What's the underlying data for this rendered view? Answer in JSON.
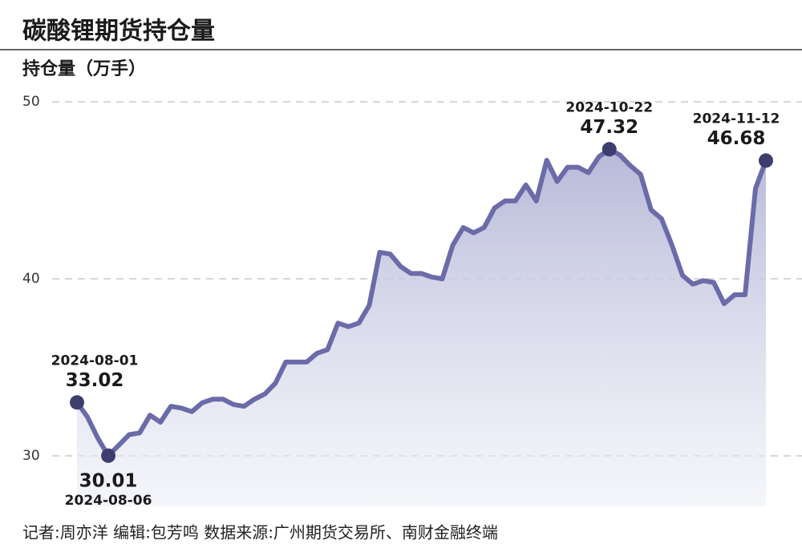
{
  "chart_data": {
    "type": "area-line",
    "title": "碳酸锂期货持仓量",
    "y_label": "持仓量（万手）",
    "footer": "记者:周亦洋  编辑:包芳鸣  数据来源:广州期货交易所、南财金融终端",
    "categories": [
      "2024-08-01",
      null,
      null,
      "2024-08-06",
      null,
      null,
      null,
      null,
      null,
      null,
      null,
      null,
      null,
      null,
      null,
      null,
      null,
      null,
      null,
      null,
      null,
      null,
      null,
      null,
      null,
      null,
      null,
      null,
      null,
      null,
      null,
      null,
      null,
      null,
      null,
      null,
      null,
      null,
      null,
      null,
      null,
      null,
      null,
      null,
      null,
      null,
      null,
      null,
      null,
      null,
      null,
      "2024-10-22",
      null,
      null,
      null,
      null,
      null,
      null,
      null,
      null,
      null,
      null,
      null,
      null,
      null,
      null,
      "2024-11-12"
    ],
    "values": [
      33.02,
      32.2,
      31.0,
      30.01,
      30.6,
      31.2,
      31.3,
      32.3,
      31.9,
      32.8,
      32.7,
      32.5,
      33.0,
      33.2,
      33.2,
      32.9,
      32.8,
      33.2,
      33.5,
      34.1,
      35.3,
      35.3,
      35.3,
      35.8,
      36.0,
      37.5,
      37.3,
      37.5,
      38.5,
      41.5,
      41.4,
      40.7,
      40.3,
      40.3,
      40.1,
      40.0,
      41.9,
      42.9,
      42.6,
      42.9,
      44.0,
      44.4,
      44.4,
      45.3,
      44.4,
      46.7,
      45.5,
      46.3,
      46.3,
      46.0,
      46.9,
      47.32,
      47.0,
      46.4,
      45.9,
      43.9,
      43.4,
      41.9,
      40.2,
      39.7,
      39.9,
      39.8,
      38.6,
      39.1,
      39.1,
      45.1,
      46.68
    ],
    "color": "#6a6ba8",
    "marker_color": "#3e3e6e",
    "ylim": [
      27.15,
      50.32
    ],
    "yticks": [
      30,
      40,
      50
    ],
    "grid": true
  }
}
